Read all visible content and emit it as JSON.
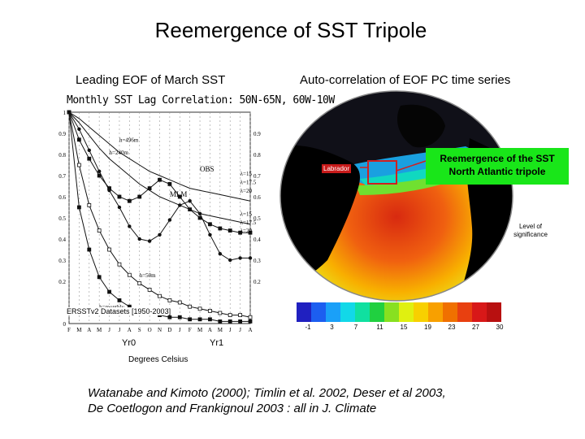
{
  "title": "Reemergence of SST Tripole",
  "left_caption": "Leading EOF of March SST",
  "right_caption": "Auto-correlation of EOF PC time series",
  "chart": {
    "title": "Monthly SST Lag Correlation: 50N-65N, 60W-10W",
    "dataset": "ERSSTv2 Datasets [1950-2003]",
    "x_year0": "Yr0",
    "x_year1": "Yr1",
    "month_ticks": [
      "F",
      "M",
      "A",
      "M",
      "J",
      "J",
      "A",
      "S",
      "O",
      "N",
      "D",
      "J",
      "F",
      "M",
      "A",
      "M",
      "J",
      "J",
      "A"
    ],
    "left_ticks": [
      "1",
      "0.9",
      "0.8",
      "0.7",
      "0.6",
      "0.5",
      "0.4",
      "0.3",
      "0.2",
      "0"
    ],
    "right_ticks": [
      "0.9",
      "0.8",
      "0.7",
      "0.6",
      "0.5",
      "0.4",
      "0.3",
      "0.2"
    ],
    "annotations": {
      "obs": "OBS",
      "mlm": "MLM",
      "h496": "h=496m",
      "h240": "h=240m",
      "h50": "h=50m",
      "hmonthly": "h=monthly",
      "lambda15a": "λ=15",
      "lambda175a": "λ=17.5",
      "lambda20a": "λ=20",
      "lambda15b": "λ=15",
      "lambda175b": "λ=17.5",
      "lambda20b": "λ=20"
    }
  },
  "chart_data": {
    "type": "line",
    "title": "Monthly SST Lag Correlation: 50N-65N, 60W-10W",
    "xlabel": "",
    "ylabel": "",
    "x": [
      0,
      1,
      2,
      3,
      4,
      5,
      6,
      7,
      8,
      9,
      10,
      11,
      12,
      13,
      14,
      15,
      16,
      17,
      18
    ],
    "ylim": [
      0,
      1
    ],
    "series": [
      {
        "name": "OBS",
        "values": [
          1,
          0.87,
          0.78,
          0.7,
          0.64,
          0.6,
          0.58,
          0.6,
          0.64,
          0.68,
          0.66,
          0.6,
          0.54,
          0.5,
          0.47,
          0.45,
          0.44,
          0.43,
          0.43
        ]
      },
      {
        "name": "MLM",
        "values": [
          1,
          0.92,
          0.82,
          0.72,
          0.63,
          0.55,
          0.46,
          0.4,
          0.39,
          0.42,
          0.49,
          0.56,
          0.58,
          0.52,
          0.42,
          0.33,
          0.3,
          0.31,
          0.31
        ]
      },
      {
        "name": "h=496m",
        "values": [
          1,
          0.97,
          0.93,
          0.89,
          0.85,
          0.81,
          0.78,
          0.75,
          0.72,
          0.7,
          0.68,
          0.66,
          0.64,
          0.63,
          0.62,
          0.61,
          0.6,
          0.59,
          0.58
        ]
      },
      {
        "name": "h=240m",
        "values": [
          1,
          0.95,
          0.89,
          0.83,
          0.78,
          0.74,
          0.7,
          0.66,
          0.63,
          0.6,
          0.58,
          0.56,
          0.54,
          0.52,
          0.51,
          0.5,
          0.49,
          0.48,
          0.47
        ]
      },
      {
        "name": "h=50m",
        "values": [
          1,
          0.75,
          0.56,
          0.44,
          0.35,
          0.28,
          0.23,
          0.19,
          0.16,
          0.13,
          0.11,
          0.1,
          0.08,
          0.07,
          0.06,
          0.05,
          0.04,
          0.04,
          0.03
        ]
      },
      {
        "name": "h=monthly",
        "values": [
          1,
          0.55,
          0.35,
          0.22,
          0.15,
          0.11,
          0.08,
          0.06,
          0.05,
          0.04,
          0.03,
          0.03,
          0.02,
          0.02,
          0.02,
          0.01,
          0.01,
          0.01,
          0.01
        ]
      }
    ]
  },
  "globe": {
    "labrador": "Labrador",
    "reemergence": "Reemergence of the SST North Atlantic tripole",
    "significance": "Level of significance"
  },
  "colorbar": {
    "labels": [
      "-1",
      "3",
      "7",
      "11",
      "15",
      "19",
      "23",
      "27",
      "30"
    ],
    "colors": [
      "#2020c0",
      "#1c5ef0",
      "#1aa0f8",
      "#12d8e8",
      "#10e0a0",
      "#20d040",
      "#88e020",
      "#e0f010",
      "#f8d000",
      "#f8a000",
      "#f07000",
      "#e84010",
      "#d81818",
      "#b81010"
    ]
  },
  "degrees_label": "Degrees Celsius",
  "citation": {
    "line1": "Watanabe and Kimoto (2000); Timlin et al. 2002, Deser et al 2003,",
    "line2": "De Coetlogon and Frankignoul 2003 : all in J. Climate"
  }
}
